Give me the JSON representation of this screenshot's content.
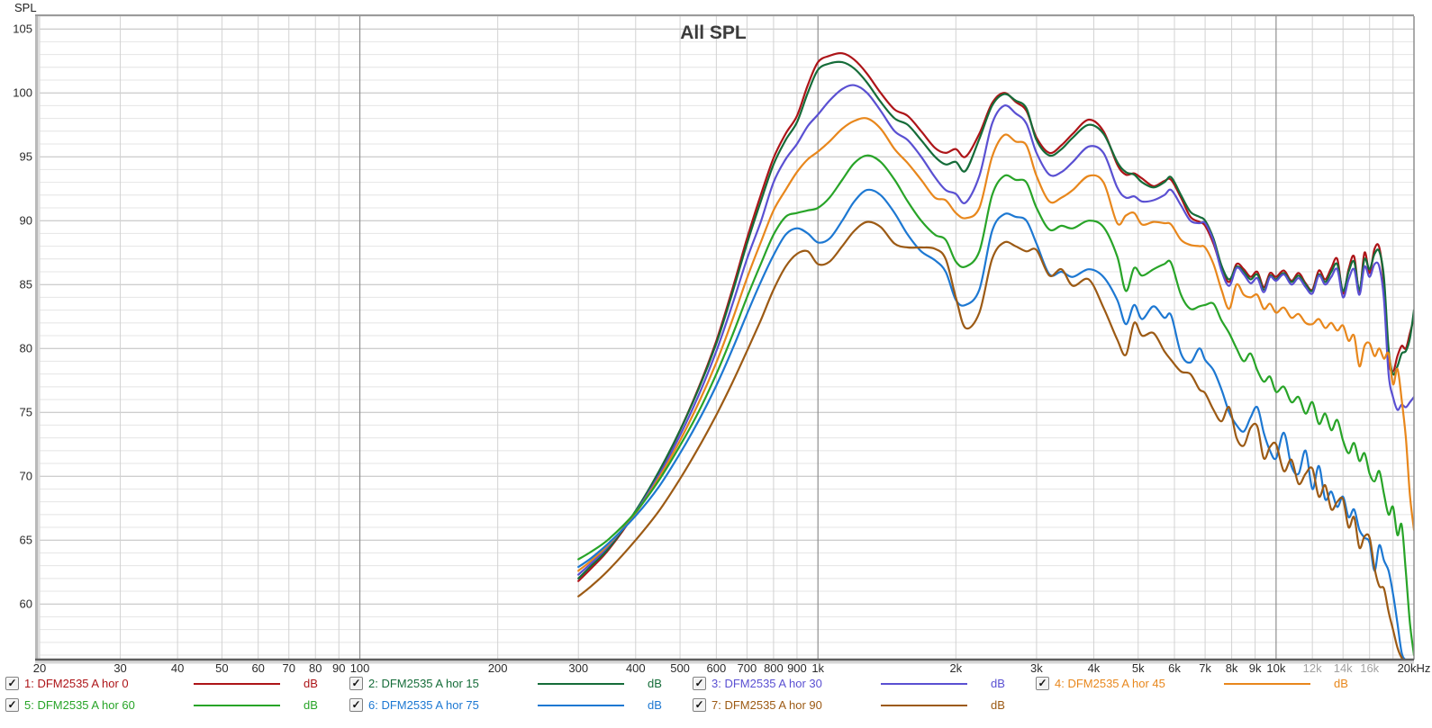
{
  "corner_label": "SPL",
  "legend": {
    "check_glyph": "✓",
    "items": [
      {
        "label": "1: DFM2535 A hor 0",
        "unit": "dB",
        "color": "#ad1418",
        "checked": true,
        "col": 0,
        "row": 0
      },
      {
        "label": "2: DFM2535 A hor 15",
        "unit": "dB",
        "color": "#156c39",
        "checked": true,
        "col": 1,
        "row": 0
      },
      {
        "label": "3: DFM2535 A hor 30",
        "unit": "dB",
        "color": "#5a50d2",
        "checked": true,
        "col": 2,
        "row": 0
      },
      {
        "label": "4: DFM2535 A hor 45",
        "unit": "dB",
        "color": "#e8871c",
        "checked": true,
        "col": 3,
        "row": 0
      },
      {
        "label": "5: DFM2535 A hor 60",
        "unit": "dB",
        "color": "#28a428",
        "checked": true,
        "col": 0,
        "row": 1
      },
      {
        "label": "6: DFM2535 A hor 75",
        "unit": "dB",
        "color": "#1d78d2",
        "checked": true,
        "col": 1,
        "row": 1
      },
      {
        "label": "7: DFM2535 A hor 90",
        "unit": "dB",
        "color": "#9c5a14",
        "checked": true,
        "col": 2,
        "row": 1
      }
    ]
  },
  "chart_data": {
    "type": "line",
    "title": "All SPL",
    "ylabel": "SPL",
    "x_scale": "log",
    "x_range": [
      20,
      20000
    ],
    "y_range": [
      55.65,
      106
    ],
    "grid": true,
    "y_ticks": [
      60,
      65,
      70,
      75,
      80,
      85,
      90,
      95,
      100,
      105
    ],
    "x_ticks": [
      {
        "f": 20,
        "label": "20"
      },
      {
        "f": 30,
        "label": "30"
      },
      {
        "f": 40,
        "label": "40"
      },
      {
        "f": 50,
        "label": "50"
      },
      {
        "f": 60,
        "label": "60"
      },
      {
        "f": 70,
        "label": "70"
      },
      {
        "f": 80,
        "label": "80"
      },
      {
        "f": 90,
        "label": "90"
      },
      {
        "f": 100,
        "label": "100",
        "dark": true
      },
      {
        "f": 200,
        "label": "200"
      },
      {
        "f": 300,
        "label": "300"
      },
      {
        "f": 400,
        "label": "400"
      },
      {
        "f": 500,
        "label": "500"
      },
      {
        "f": 600,
        "label": "600"
      },
      {
        "f": 700,
        "label": "700"
      },
      {
        "f": 800,
        "label": "800"
      },
      {
        "f": 900,
        "label": "900"
      },
      {
        "f": 1000,
        "label": "1k",
        "dark": true
      },
      {
        "f": 2000,
        "label": "2k"
      },
      {
        "f": 3000,
        "label": "3k"
      },
      {
        "f": 4000,
        "label": "4k"
      },
      {
        "f": 5000,
        "label": "5k"
      },
      {
        "f": 6000,
        "label": "6k"
      },
      {
        "f": 7000,
        "label": "7k"
      },
      {
        "f": 8000,
        "label": "8k"
      },
      {
        "f": 9000,
        "label": "9k"
      },
      {
        "f": 10000,
        "label": "10k",
        "dark": true
      },
      {
        "f": 12000,
        "label": "12k",
        "gray": true
      },
      {
        "f": 14000,
        "label": "14k",
        "gray": true
      },
      {
        "f": 16000,
        "label": "16k",
        "gray": true
      },
      {
        "f": 18000,
        "label": ""
      },
      {
        "f": 20000,
        "label": "20kHz"
      }
    ],
    "freqs": [
      300,
      320,
      350,
      400,
      450,
      500,
      550,
      600,
      650,
      700,
      750,
      800,
      850,
      900,
      950,
      1000,
      1060,
      1130,
      1200,
      1280,
      1370,
      1470,
      1570,
      1680,
      1800,
      1900,
      2000,
      2100,
      2250,
      2400,
      2550,
      2700,
      2850,
      3000,
      3200,
      3400,
      3600,
      3900,
      4200,
      4500,
      4700,
      4900,
      5100,
      5400,
      5700,
      5900,
      6200,
      6500,
      6800,
      7000,
      7300,
      7600,
      7900,
      8200,
      8500,
      8800,
      9100,
      9400,
      9700,
      10000,
      10400,
      10800,
      11200,
      11600,
      12000,
      12400,
      12800,
      13200,
      13600,
      14000,
      14400,
      14800,
      15200,
      15600,
      16000,
      16400,
      16800,
      17200,
      17600,
      18000,
      18400,
      18800,
      19200,
      19600,
      20000
    ],
    "series": [
      {
        "name": "DFM2535 A hor 0",
        "color": "#ad1418",
        "values": [
          61.8,
          62.8,
          64.3,
          67.2,
          70.3,
          73.6,
          77.0,
          80.6,
          84.6,
          88.6,
          92.0,
          94.9,
          96.8,
          98.2,
          100.6,
          102.4,
          102.9,
          103.1,
          102.6,
          101.5,
          100.0,
          98.7,
          98.2,
          97.0,
          95.7,
          95.3,
          95.6,
          95.0,
          96.8,
          99.2,
          100.0,
          99.3,
          98.6,
          96.5,
          95.3,
          95.9,
          96.8,
          97.9,
          97.0,
          94.4,
          93.6,
          93.7,
          93.3,
          92.7,
          93.1,
          93.2,
          91.8,
          90.3,
          89.9,
          89.6,
          88.2,
          86.3,
          85.2,
          86.6,
          86.2,
          85.6,
          86.0,
          84.8,
          85.9,
          85.6,
          86.1,
          85.3,
          85.9,
          85.1,
          84.6,
          86.1,
          85.4,
          86.3,
          87.0,
          84.3,
          86.2,
          87.2,
          84.4,
          87.5,
          85.9,
          87.8,
          87.9,
          85.0,
          79.2,
          78.2,
          79.4,
          80.2,
          80.0,
          81.2,
          82.4
        ]
      },
      {
        "name": "DFM2535 A hor 15",
        "color": "#156c39",
        "values": [
          62.0,
          63.0,
          64.4,
          67.3,
          70.4,
          73.6,
          76.9,
          80.4,
          84.3,
          88.2,
          91.5,
          94.4,
          96.3,
          97.7,
          100.0,
          101.8,
          102.3,
          102.4,
          101.9,
          100.8,
          99.3,
          98.0,
          97.5,
          96.3,
          95.0,
          94.4,
          94.6,
          93.9,
          96.4,
          99.0,
          99.9,
          99.4,
          98.8,
          96.3,
          95.1,
          95.6,
          96.5,
          97.5,
          96.8,
          94.6,
          93.8,
          93.6,
          93.0,
          92.6,
          93.0,
          93.4,
          92.0,
          90.7,
          90.3,
          90.0,
          88.6,
          86.5,
          85.4,
          86.4,
          86.0,
          85.4,
          85.8,
          84.6,
          85.7,
          85.4,
          85.9,
          85.2,
          85.7,
          85.0,
          84.5,
          85.8,
          85.2,
          86.0,
          86.6,
          84.5,
          86.0,
          86.8,
          84.6,
          87.0,
          86.2,
          87.4,
          87.6,
          85.5,
          80.0,
          78.0,
          78.6,
          79.6,
          79.8,
          80.8,
          83.0
        ]
      },
      {
        "name": "DFM2535 A hor 30",
        "color": "#5a50d2",
        "values": [
          62.3,
          63.2,
          64.6,
          67.2,
          70.1,
          73.2,
          76.4,
          79.8,
          83.4,
          87.0,
          89.9,
          93.0,
          94.8,
          96.0,
          97.4,
          98.3,
          99.4,
          100.3,
          100.6,
          100.0,
          98.6,
          97.0,
          96.3,
          95.0,
          93.4,
          92.4,
          92.1,
          91.4,
          93.5,
          97.6,
          99.0,
          98.4,
          97.6,
          95.3,
          93.6,
          93.8,
          94.6,
          95.8,
          95.3,
          92.6,
          91.8,
          91.9,
          91.5,
          91.6,
          92.0,
          92.4,
          91.2,
          90.0,
          89.8,
          89.8,
          88.4,
          86.1,
          84.9,
          86.3,
          85.8,
          85.1,
          85.5,
          84.4,
          85.6,
          85.3,
          85.8,
          85.0,
          85.5,
          84.8,
          84.3,
          85.7,
          85.0,
          85.6,
          86.2,
          84.0,
          85.4,
          86.2,
          84.2,
          86.4,
          85.6,
          86.6,
          86.4,
          83.8,
          78.0,
          76.2,
          75.2,
          75.6,
          75.4,
          75.8,
          76.2
        ]
      },
      {
        "name": "DFM2535 A hor 45",
        "color": "#e8871c",
        "values": [
          62.6,
          63.4,
          64.7,
          67.1,
          69.9,
          72.8,
          75.8,
          78.9,
          82.2,
          85.5,
          88.3,
          90.8,
          92.4,
          93.8,
          94.8,
          95.4,
          96.2,
          97.2,
          97.8,
          98.0,
          97.2,
          95.6,
          94.5,
          93.2,
          91.8,
          91.6,
          90.6,
          90.2,
          91.0,
          95.0,
          96.7,
          96.2,
          95.9,
          93.5,
          91.5,
          91.8,
          92.4,
          93.5,
          93.0,
          89.8,
          90.4,
          90.6,
          89.7,
          89.9,
          89.8,
          89.7,
          88.5,
          88.1,
          88.0,
          87.9,
          86.6,
          84.6,
          83.1,
          85.0,
          84.2,
          84.0,
          84.2,
          83.1,
          83.5,
          82.8,
          83.2,
          82.4,
          82.7,
          82.0,
          81.9,
          82.3,
          81.6,
          82.0,
          81.4,
          81.8,
          80.6,
          81.0,
          78.6,
          80.2,
          80.4,
          79.4,
          80.0,
          79.2,
          79.6,
          77.2,
          78.4,
          76.0,
          73.0,
          68.5,
          65.8
        ]
      },
      {
        "name": "DFM2535 A hor 60",
        "color": "#28a428",
        "values": [
          63.5,
          64.1,
          65.1,
          67.2,
          69.7,
          72.4,
          75.1,
          78.0,
          81.0,
          84.0,
          86.6,
          88.9,
          90.3,
          90.6,
          90.8,
          91.0,
          91.8,
          93.2,
          94.5,
          95.1,
          94.6,
          93.2,
          91.5,
          90.0,
          88.9,
          88.5,
          86.8,
          86.4,
          87.6,
          92.0,
          93.5,
          93.2,
          93.0,
          91.0,
          89.3,
          89.6,
          89.4,
          90.0,
          89.5,
          87.2,
          84.5,
          86.3,
          85.7,
          86.2,
          86.6,
          86.7,
          84.2,
          83.1,
          83.3,
          83.4,
          83.5,
          82.2,
          81.2,
          80.0,
          79.0,
          79.6,
          78.3,
          77.4,
          77.8,
          76.6,
          77.0,
          75.8,
          76.2,
          74.9,
          75.8,
          74.1,
          74.9,
          73.6,
          74.4,
          72.8,
          71.8,
          72.6,
          71.2,
          71.8,
          70.2,
          69.6,
          70.4,
          68.6,
          67.0,
          67.6,
          65.4,
          66.2,
          62.5,
          58.5,
          56.0
        ]
      },
      {
        "name": "DFM2535 A hor 75",
        "color": "#1d78d2",
        "values": [
          62.9,
          63.6,
          64.8,
          66.9,
          69.2,
          71.8,
          74.4,
          77.1,
          79.9,
          82.7,
          85.2,
          87.3,
          88.9,
          89.4,
          89.0,
          88.3,
          88.6,
          90.0,
          91.5,
          92.4,
          92.0,
          90.6,
          88.9,
          87.6,
          86.9,
          86.0,
          83.8,
          83.4,
          84.6,
          89.2,
          90.5,
          90.3,
          90.0,
          88.2,
          85.8,
          86.0,
          85.6,
          86.2,
          85.6,
          83.8,
          81.9,
          83.4,
          82.3,
          83.3,
          82.4,
          82.6,
          79.6,
          78.9,
          80.0,
          79.1,
          78.3,
          76.8,
          75.0,
          74.0,
          73.5,
          74.6,
          75.4,
          73.4,
          72.0,
          71.4,
          73.4,
          70.8,
          70.2,
          72.0,
          69.0,
          70.8,
          68.2,
          68.8,
          67.6,
          68.4,
          66.8,
          67.4,
          65.8,
          65.2,
          64.8,
          62.6,
          64.6,
          63.4,
          62.6,
          60.8,
          58.5,
          56.2,
          55.6,
          55.5,
          55.5
        ]
      },
      {
        "name": "DFM2535 A hor 90",
        "color": "#9c5a14",
        "values": [
          60.6,
          61.4,
          62.7,
          65.0,
          67.3,
          69.8,
          72.3,
          74.8,
          77.3,
          79.8,
          82.2,
          84.6,
          86.4,
          87.4,
          87.6,
          86.6,
          86.8,
          88.0,
          89.2,
          89.9,
          89.5,
          88.2,
          87.9,
          87.9,
          87.8,
          87.0,
          84.0,
          81.6,
          82.8,
          87.0,
          88.3,
          88.0,
          87.6,
          87.7,
          85.7,
          86.2,
          84.9,
          85.4,
          83.2,
          80.7,
          79.5,
          82.0,
          81.0,
          81.2,
          79.8,
          79.1,
          78.2,
          78.0,
          76.8,
          76.5,
          75.2,
          74.3,
          75.4,
          73.0,
          72.4,
          73.8,
          73.9,
          71.4,
          72.3,
          72.5,
          70.4,
          71.3,
          69.4,
          70.2,
          70.6,
          68.4,
          69.3,
          67.4,
          68.0,
          68.2,
          66.0,
          66.8,
          64.4,
          65.3,
          65.2,
          62.8,
          61.4,
          61.2,
          59.4,
          58.0,
          56.6,
          55.8,
          55.5,
          55.5,
          55.5
        ]
      }
    ]
  }
}
